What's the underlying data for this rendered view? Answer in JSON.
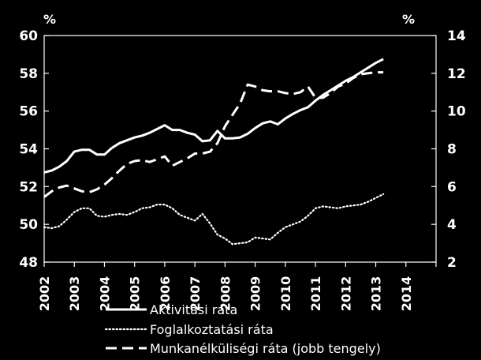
{
  "chart_data": {
    "type": "line",
    "title": "",
    "left_unit": "%",
    "right_unit": "%",
    "y_left": {
      "min": 48,
      "max": 60,
      "ticks": [
        48,
        50,
        52,
        54,
        56,
        58,
        60
      ]
    },
    "y_right": {
      "min": 2,
      "max": 14,
      "ticks": [
        2,
        4,
        6,
        8,
        10,
        12,
        14
      ]
    },
    "x": {
      "min": 2002,
      "max": 2015,
      "tick_labels": [
        "2002",
        "2003",
        "2004",
        "2005",
        "2006",
        "2007",
        "2008",
        "2009",
        "2010",
        "2011",
        "2012",
        "2013",
        "2014"
      ]
    },
    "grid": false,
    "legend_placement": "bottom",
    "series": [
      {
        "name": "Aktivitási ráta",
        "axis": "left",
        "style": "solid",
        "color": "#ffffff",
        "points": [
          [
            2002.0,
            52.75
          ],
          [
            2002.25,
            52.85
          ],
          [
            2002.5,
            53.05
          ],
          [
            2002.75,
            53.35
          ],
          [
            2003.0,
            53.85
          ],
          [
            2003.25,
            53.95
          ],
          [
            2003.5,
            53.95
          ],
          [
            2003.75,
            53.7
          ],
          [
            2004.0,
            53.7
          ],
          [
            2004.25,
            54.05
          ],
          [
            2004.5,
            54.3
          ],
          [
            2004.75,
            54.45
          ],
          [
            2005.0,
            54.6
          ],
          [
            2005.25,
            54.7
          ],
          [
            2005.5,
            54.85
          ],
          [
            2005.75,
            55.05
          ],
          [
            2006.0,
            55.25
          ],
          [
            2006.25,
            55.0
          ],
          [
            2006.5,
            55.0
          ],
          [
            2006.75,
            54.85
          ],
          [
            2007.0,
            54.75
          ],
          [
            2007.25,
            54.4
          ],
          [
            2007.5,
            54.45
          ],
          [
            2007.75,
            54.95
          ],
          [
            2008.0,
            54.55
          ],
          [
            2008.25,
            54.55
          ],
          [
            2008.5,
            54.6
          ],
          [
            2008.75,
            54.8
          ],
          [
            2009.0,
            55.1
          ],
          [
            2009.25,
            55.35
          ],
          [
            2009.5,
            55.45
          ],
          [
            2009.75,
            55.3
          ],
          [
            2010.0,
            55.6
          ],
          [
            2010.25,
            55.85
          ],
          [
            2010.5,
            56.05
          ],
          [
            2010.75,
            56.2
          ],
          [
            2011.0,
            56.55
          ],
          [
            2011.25,
            56.85
          ],
          [
            2011.5,
            57.1
          ],
          [
            2011.75,
            57.35
          ],
          [
            2012.0,
            57.6
          ],
          [
            2012.25,
            57.8
          ],
          [
            2012.5,
            58.05
          ],
          [
            2012.75,
            58.3
          ],
          [
            2013.0,
            58.55
          ],
          [
            2013.25,
            58.75
          ]
        ]
      },
      {
        "name": "Foglalkoztatási ráta",
        "axis": "left",
        "style": "dotted",
        "color": "#ffffff",
        "points": [
          [
            2002.0,
            49.85
          ],
          [
            2002.25,
            49.8
          ],
          [
            2002.5,
            49.9
          ],
          [
            2002.75,
            50.25
          ],
          [
            2003.0,
            50.65
          ],
          [
            2003.25,
            50.85
          ],
          [
            2003.5,
            50.85
          ],
          [
            2003.75,
            50.45
          ],
          [
            2004.0,
            50.4
          ],
          [
            2004.25,
            50.5
          ],
          [
            2004.5,
            50.55
          ],
          [
            2004.75,
            50.5
          ],
          [
            2005.0,
            50.65
          ],
          [
            2005.25,
            50.85
          ],
          [
            2005.5,
            50.9
          ],
          [
            2005.75,
            51.05
          ],
          [
            2006.0,
            51.05
          ],
          [
            2006.25,
            50.85
          ],
          [
            2006.5,
            50.5
          ],
          [
            2006.75,
            50.35
          ],
          [
            2007.0,
            50.2
          ],
          [
            2007.25,
            50.55
          ],
          [
            2007.5,
            50.05
          ],
          [
            2007.75,
            49.45
          ],
          [
            2008.0,
            49.25
          ],
          [
            2008.25,
            48.95
          ],
          [
            2008.5,
            49.0
          ],
          [
            2008.75,
            49.05
          ],
          [
            2009.0,
            49.3
          ],
          [
            2009.25,
            49.25
          ],
          [
            2009.5,
            49.2
          ],
          [
            2009.75,
            49.55
          ],
          [
            2010.0,
            49.85
          ],
          [
            2010.25,
            50.0
          ],
          [
            2010.5,
            50.15
          ],
          [
            2010.75,
            50.45
          ],
          [
            2011.0,
            50.85
          ],
          [
            2011.25,
            50.95
          ],
          [
            2011.5,
            50.9
          ],
          [
            2011.75,
            50.85
          ],
          [
            2012.0,
            50.95
          ],
          [
            2012.25,
            51.0
          ],
          [
            2012.5,
            51.05
          ],
          [
            2012.75,
            51.2
          ],
          [
            2013.0,
            51.4
          ],
          [
            2013.25,
            51.6
          ]
        ]
      },
      {
        "name": "Munkanélküliségi ráta (jobb tengely)",
        "axis": "right",
        "style": "dashed",
        "color": "#ffffff",
        "points": [
          [
            2002.0,
            5.45
          ],
          [
            2002.25,
            5.75
          ],
          [
            2002.5,
            5.95
          ],
          [
            2002.75,
            6.05
          ],
          [
            2003.0,
            5.9
          ],
          [
            2003.25,
            5.75
          ],
          [
            2003.5,
            5.7
          ],
          [
            2003.75,
            5.85
          ],
          [
            2004.0,
            6.1
          ],
          [
            2004.25,
            6.45
          ],
          [
            2004.5,
            6.85
          ],
          [
            2004.75,
            7.2
          ],
          [
            2005.0,
            7.35
          ],
          [
            2005.25,
            7.4
          ],
          [
            2005.5,
            7.3
          ],
          [
            2005.75,
            7.45
          ],
          [
            2006.0,
            7.6
          ],
          [
            2006.25,
            7.1
          ],
          [
            2006.5,
            7.3
          ],
          [
            2006.75,
            7.5
          ],
          [
            2007.0,
            7.75
          ],
          [
            2007.25,
            7.75
          ],
          [
            2007.5,
            7.85
          ],
          [
            2007.75,
            8.3
          ],
          [
            2008.0,
            9.2
          ],
          [
            2008.25,
            9.8
          ],
          [
            2008.5,
            10.4
          ],
          [
            2008.75,
            11.4
          ],
          [
            2009.0,
            11.3
          ],
          [
            2009.25,
            11.1
          ],
          [
            2009.5,
            11.05
          ],
          [
            2009.75,
            11.05
          ],
          [
            2010.0,
            10.95
          ],
          [
            2010.25,
            10.9
          ],
          [
            2010.5,
            11.0
          ],
          [
            2010.75,
            11.3
          ],
          [
            2011.0,
            10.7
          ],
          [
            2011.25,
            10.7
          ],
          [
            2011.5,
            10.95
          ],
          [
            2011.75,
            11.3
          ],
          [
            2012.0,
            11.45
          ],
          [
            2012.25,
            11.75
          ],
          [
            2012.5,
            11.95
          ],
          [
            2012.75,
            12.0
          ],
          [
            2013.0,
            12.05
          ],
          [
            2013.25,
            12.05
          ]
        ]
      }
    ]
  }
}
